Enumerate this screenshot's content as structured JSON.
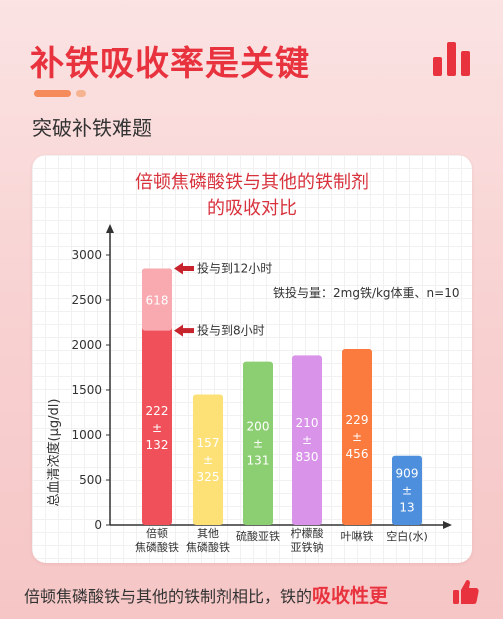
{
  "header": {
    "title": "补铁吸收率是关键",
    "subtitle": "突破补铁难题"
  },
  "chart_data": {
    "type": "bar",
    "title_line1": "倍顿焦磷酸铁与其他的铁制剂",
    "title_line2": "的吸收对比",
    "ylabel": "总血清浓度(μg/dl)",
    "xlabel": "",
    "ylim": [
      0,
      3000
    ],
    "yticks": [
      0,
      500,
      1000,
      1500,
      2000,
      2500,
      3000
    ],
    "note": "铁投与量：2mg铁/kg体重、n=10",
    "categories": [
      [
        "倍顿",
        "焦磷酸铁"
      ],
      [
        "其他",
        "焦磷酸铁"
      ],
      [
        "硫酸亚铁"
      ],
      [
        "柠檬酸",
        "亚铁钠"
      ],
      [
        "叶啉铁"
      ],
      [
        "空白(水)"
      ]
    ],
    "bars": [
      {
        "value": 2850,
        "color": "#f0505a",
        "stack_value": 2160,
        "stack_color": "#f8aab0",
        "segment_label": "618",
        "label_lines": [
          "222",
          "±",
          "132"
        ],
        "label_color": "#ffffff"
      },
      {
        "value": 1450,
        "color": "#fde177",
        "label_lines": [
          "157",
          "±",
          "325"
        ],
        "label_color": "#ffffff"
      },
      {
        "value": 1815,
        "color": "#8ccf72",
        "label_lines": [
          "200",
          "±",
          "131"
        ],
        "label_color": "#ffffff"
      },
      {
        "value": 1885,
        "color": "#d993e8",
        "label_lines": [
          "210",
          "±",
          "830"
        ],
        "label_color": "#ffffff"
      },
      {
        "value": 1955,
        "color": "#fb7a3e",
        "label_lines": [
          "229",
          "±",
          "456"
        ],
        "label_color": "#ffffff"
      },
      {
        "value": 770,
        "color": "#4e8fdd",
        "label_lines": [
          "909",
          "±",
          "13"
        ],
        "label_color": "#ffffff"
      }
    ],
    "annotations": [
      {
        "text": "投与到12小时",
        "value": 2850
      },
      {
        "text": "投与到8小时",
        "value": 2160
      }
    ]
  },
  "footer": {
    "text": "倍顿焦磷酸铁与其他的铁制剂相比，铁的",
    "highlight": "吸收性更"
  },
  "colors": {
    "accent": "#e8333f",
    "background": "#f9d6d6"
  },
  "icons": {
    "header_icon": "bar-chart-icon",
    "footer_icon": "thumbs-up-icon"
  }
}
